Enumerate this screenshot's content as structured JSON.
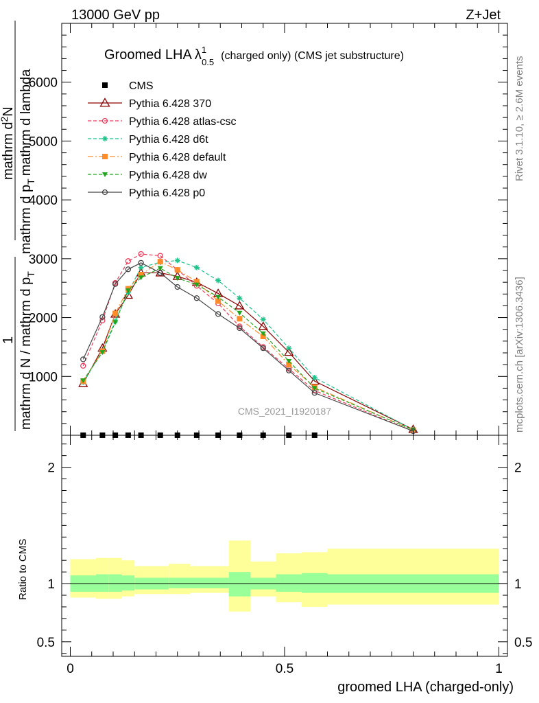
{
  "header": {
    "left": "13000 GeV pp",
    "right": "Z+Jet"
  },
  "side_labels": {
    "rivet": "Rivet 3.1.10, ≥ 2.6M events",
    "mcplots": "mcplots.cern.ch [arXiv:1306.3436]"
  },
  "watermark": "CMS_2021_I1920187",
  "colors": {
    "cms": "#000000",
    "p370": "#8b0000",
    "atlas_csc": "#ee3a5a",
    "d6t": "#1ec38a",
    "default": "#ff8c2a",
    "dw": "#22a51e",
    "p0": "#444444",
    "band_inner": "#99ff99",
    "band_outer": "#ffff99"
  },
  "chart_data": [
    {
      "type": "line",
      "title_main": "Groomed LHA",
      "title_lambda": "λ",
      "title_sup": "1",
      "title_sub": "0.5",
      "title_rest": "(charged only) (CMS jet substructure)",
      "ylabel_frac": "1",
      "ylabel_den": "mathrm d N / mathrm d p",
      "ylabel_den_sub": "T",
      "ylabel_num": "mathrm d",
      "ylabel_num_sup": "2",
      "ylabel_num_rest": "N",
      "ylabel_num2": "mathrm d p",
      "ylabel_num2_sub": "T",
      "ylabel_num2_rest": "mathrm d lambda",
      "xlim": [
        -0.02,
        1.02
      ],
      "ylim": [
        0,
        7000
      ],
      "yticks": [
        {
          "v": 1000,
          "label": "1000"
        },
        {
          "v": 2000,
          "label": "2000"
        },
        {
          "v": 3000,
          "label": "3000"
        },
        {
          "v": 4000,
          "label": "4000"
        },
        {
          "v": 5000,
          "label": "5000"
        },
        {
          "v": 6000,
          "label": "6000"
        }
      ],
      "legend_position": "top-left",
      "x": [
        0.03,
        0.075,
        0.105,
        0.135,
        0.165,
        0.21,
        0.25,
        0.295,
        0.345,
        0.395,
        0.45,
        0.51,
        0.57,
        0.8
      ],
      "series": [
        {
          "name": "CMS",
          "key": "cms",
          "marker": "square-filled",
          "dash": "none",
          "values": [
            0.5,
            0.5,
            0.5,
            0.5,
            0.5,
            0.5,
            0.5,
            0.5,
            0.5,
            0.5,
            0.5,
            0.5,
            0.5,
            null
          ]
        },
        {
          "name": "Pythia 6.428 370",
          "key": "p370",
          "marker": "triangle-open",
          "dash": "solid",
          "values": [
            880,
            1480,
            2060,
            2380,
            2760,
            2760,
            2700,
            2600,
            2410,
            2200,
            1850,
            1410,
            920,
            100
          ]
        },
        {
          "name": "Pythia 6.428 atlas-csc",
          "key": "atlas_csc",
          "marker": "circle-open",
          "dash": "dashed",
          "values": [
            1180,
            1950,
            2590,
            2960,
            3080,
            3050,
            2810,
            2540,
            2240,
            1850,
            1500,
            1130,
            760,
            70
          ]
        },
        {
          "name": "Pythia 6.428 d6t",
          "key": "d6t",
          "marker": "star",
          "dash": "dashed",
          "values": [
            900,
            1430,
            1940,
            2430,
            2850,
            2940,
            2970,
            2850,
            2630,
            2330,
            1970,
            1480,
            980,
            95
          ]
        },
        {
          "name": "Pythia 6.428 default",
          "key": "default",
          "marker": "square-filled",
          "dash": "dashdot",
          "values": [
            920,
            1430,
            2070,
            2490,
            2730,
            2950,
            2810,
            2610,
            2280,
            1980,
            1680,
            1200,
            820,
            85
          ]
        },
        {
          "name": "Pythia 6.428 dw",
          "key": "dw",
          "marker": "triangle-down-filled",
          "dash": "dashed",
          "values": [
            930,
            1410,
            1920,
            2460,
            2680,
            2840,
            2670,
            2560,
            2350,
            2080,
            1730,
            1260,
            800,
            90
          ]
        },
        {
          "name": "Pythia 6.428 p0",
          "key": "p0",
          "marker": "circle-open",
          "dash": "solid",
          "values": [
            1290,
            2010,
            2570,
            2820,
            2930,
            2760,
            2520,
            2330,
            2060,
            1820,
            1480,
            1100,
            720,
            70
          ]
        }
      ]
    },
    {
      "type": "area",
      "ylabel": "Ratio to CMS",
      "xlabel": "groomed LHA (charged-only)",
      "xlim": [
        -0.02,
        1.02
      ],
      "ylim": [
        0.375,
        2.275
      ],
      "yticks": [
        {
          "v": 0.5,
          "label": "0.5"
        },
        {
          "v": 1,
          "label": "1"
        },
        {
          "v": 2,
          "label": "2"
        }
      ],
      "xticks": [
        {
          "v": 0,
          "label": "0"
        },
        {
          "v": 0.5,
          "label": "0.5"
        },
        {
          "v": 1,
          "label": "1"
        }
      ],
      "bins": [
        {
          "lo": 0.0,
          "hi": 0.06,
          "inner": [
            0.93,
            1.07
          ],
          "outer": [
            0.88,
            1.21
          ]
        },
        {
          "lo": 0.06,
          "hi": 0.09,
          "inner": [
            0.93,
            1.08
          ],
          "outer": [
            0.87,
            1.22
          ]
        },
        {
          "lo": 0.09,
          "hi": 0.12,
          "inner": [
            0.93,
            1.08
          ],
          "outer": [
            0.87,
            1.22
          ]
        },
        {
          "lo": 0.12,
          "hi": 0.15,
          "inner": [
            0.94,
            1.07
          ],
          "outer": [
            0.89,
            1.2
          ]
        },
        {
          "lo": 0.15,
          "hi": 0.18,
          "inner": [
            0.95,
            1.05
          ],
          "outer": [
            0.91,
            1.15
          ]
        },
        {
          "lo": 0.18,
          "hi": 0.23,
          "inner": [
            0.95,
            1.05
          ],
          "outer": [
            0.91,
            1.15
          ]
        },
        {
          "lo": 0.23,
          "hi": 0.28,
          "inner": [
            0.96,
            1.05
          ],
          "outer": [
            0.91,
            1.17
          ]
        },
        {
          "lo": 0.28,
          "hi": 0.37,
          "inner": [
            0.96,
            1.05
          ],
          "outer": [
            0.92,
            1.15
          ]
        },
        {
          "lo": 0.37,
          "hi": 0.42,
          "inner": [
            0.89,
            1.1
          ],
          "outer": [
            0.76,
            1.37
          ]
        },
        {
          "lo": 0.42,
          "hi": 0.48,
          "inner": [
            0.95,
            1.05
          ],
          "outer": [
            0.89,
            1.19
          ]
        },
        {
          "lo": 0.48,
          "hi": 0.54,
          "inner": [
            0.93,
            1.08
          ],
          "outer": [
            0.84,
            1.26
          ]
        },
        {
          "lo": 0.54,
          "hi": 0.6,
          "inner": [
            0.92,
            1.09
          ],
          "outer": [
            0.8,
            1.27
          ]
        },
        {
          "lo": 0.6,
          "hi": 1.0,
          "inner": [
            0.92,
            1.08
          ],
          "outer": [
            0.82,
            1.3
          ]
        }
      ]
    }
  ]
}
